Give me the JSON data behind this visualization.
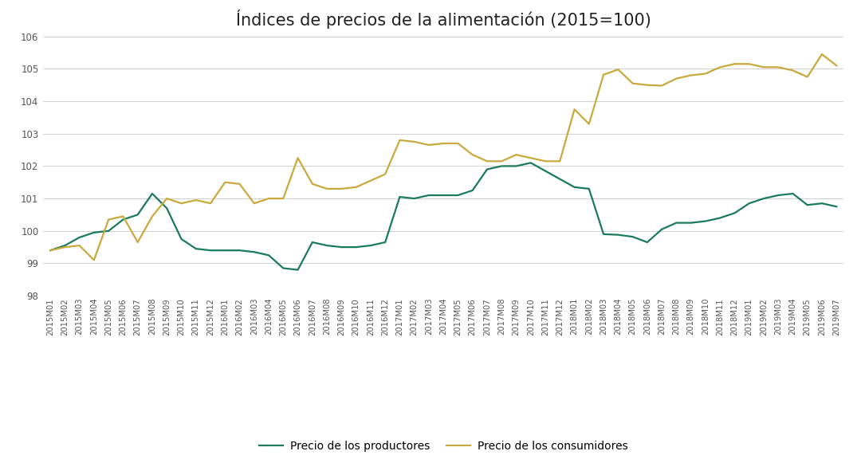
{
  "title": "Índices de precios de la alimentación (2015=100)",
  "labels": [
    "2015M01",
    "2015M02",
    "2015M03",
    "2015M04",
    "2015M05",
    "2015M06",
    "2015M07",
    "2015M08",
    "2015M09",
    "2015M10",
    "2015M11",
    "2015M12",
    "2016M01",
    "2016M02",
    "2016M03",
    "2016M04",
    "2016M05",
    "2016M06",
    "2016M07",
    "2016M08",
    "2016M09",
    "2016M10",
    "2016M11",
    "2016M12",
    "2017M01",
    "2017M02",
    "2017M03",
    "2017M04",
    "2017M05",
    "2017M06",
    "2017M07",
    "2017M08",
    "2017M09",
    "2017M10",
    "2017M11",
    "2017M12",
    "2018M01",
    "2018M02",
    "2018M03",
    "2018M04",
    "2018M05",
    "2018M06",
    "2018M07",
    "2018M08",
    "2018M09",
    "2018M10",
    "2018M11",
    "2018M12",
    "2019M01",
    "2019M02",
    "2019M03",
    "2019M04",
    "2019M05",
    "2019M06",
    "2019M07"
  ],
  "productores": [
    99.4,
    99.55,
    99.8,
    99.95,
    100.0,
    100.35,
    100.5,
    101.15,
    100.7,
    99.75,
    99.45,
    99.4,
    99.4,
    99.4,
    99.35,
    99.25,
    98.85,
    98.8,
    99.65,
    99.55,
    99.5,
    99.5,
    99.55,
    99.65,
    101.05,
    101.0,
    101.1,
    101.1,
    101.1,
    101.25,
    101.9,
    102.0,
    102.0,
    102.1,
    101.85,
    101.6,
    101.35,
    101.3,
    99.9,
    99.88,
    99.82,
    99.65,
    100.05,
    100.25,
    100.25,
    100.3,
    100.4,
    100.55,
    100.85,
    101.0,
    101.1,
    101.15,
    100.8,
    100.85,
    100.75
  ],
  "consumidores": [
    99.4,
    99.5,
    99.55,
    99.1,
    100.35,
    100.45,
    99.65,
    100.45,
    101.0,
    100.85,
    100.95,
    100.85,
    101.5,
    101.45,
    100.85,
    101.0,
    101.0,
    102.25,
    101.45,
    101.3,
    101.3,
    101.35,
    101.55,
    101.75,
    102.8,
    102.75,
    102.65,
    102.7,
    102.7,
    102.35,
    102.15,
    102.15,
    102.35,
    102.25,
    102.15,
    102.15,
    103.75,
    103.3,
    104.82,
    104.98,
    104.55,
    104.5,
    104.48,
    104.7,
    104.8,
    104.85,
    105.05,
    105.15,
    105.15,
    105.05,
    105.05,
    104.95,
    104.75,
    105.45,
    105.1
  ],
  "producer_color": "#1a7a5e",
  "consumer_color": "#c9a83c",
  "ylim": [
    98,
    106
  ],
  "yticks": [
    98,
    99,
    100,
    101,
    102,
    103,
    104,
    105,
    106
  ],
  "background_color": "#ffffff",
  "grid_color": "#d0d0d0",
  "legend_producer": "Precio de los productores",
  "legend_consumer": "Precio de los consumidores",
  "title_fontsize": 15
}
